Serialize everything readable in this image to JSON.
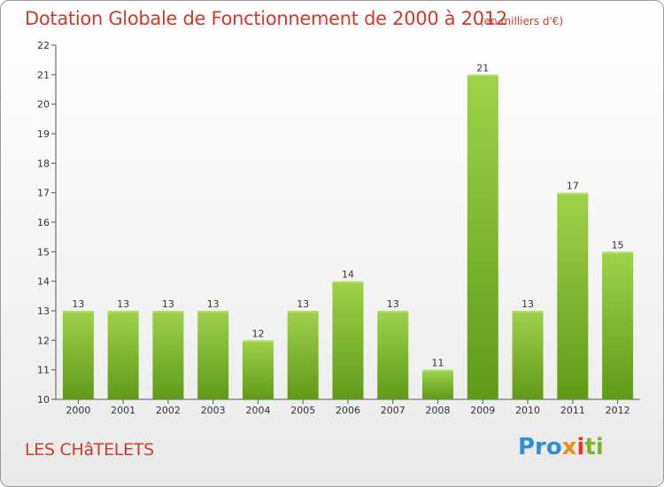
{
  "header": {
    "title": "Dotation Globale de Fonctionnement de 2000 à 2012",
    "unit": "(en milliers d'€)"
  },
  "footer": {
    "commune": "LES CHâTELETS",
    "logo_parts": [
      "Pro",
      "x",
      "i",
      "ti"
    ]
  },
  "colors": {
    "bar_top": "#9fd24a",
    "bar_bottom": "#5f9a17",
    "title": "#d23a2a",
    "axis": "#555555"
  },
  "chart_data": {
    "type": "bar",
    "title": "Dotation Globale de Fonctionnement de 2000 à 2012",
    "xlabel": "",
    "ylabel": "",
    "categories": [
      "2000",
      "2001",
      "2002",
      "2003",
      "2004",
      "2005",
      "2006",
      "2007",
      "2008",
      "2009",
      "2010",
      "2011",
      "2012"
    ],
    "values": [
      13,
      13,
      13,
      13,
      12,
      13,
      14,
      13,
      11,
      21,
      13,
      17,
      15
    ],
    "ylim": [
      10,
      22
    ],
    "yticks": [
      "10",
      "11",
      "12",
      "13",
      "14",
      "15",
      "16",
      "17",
      "18",
      "19",
      "20",
      "21",
      "22"
    ],
    "grid": false,
    "legend": "none"
  }
}
